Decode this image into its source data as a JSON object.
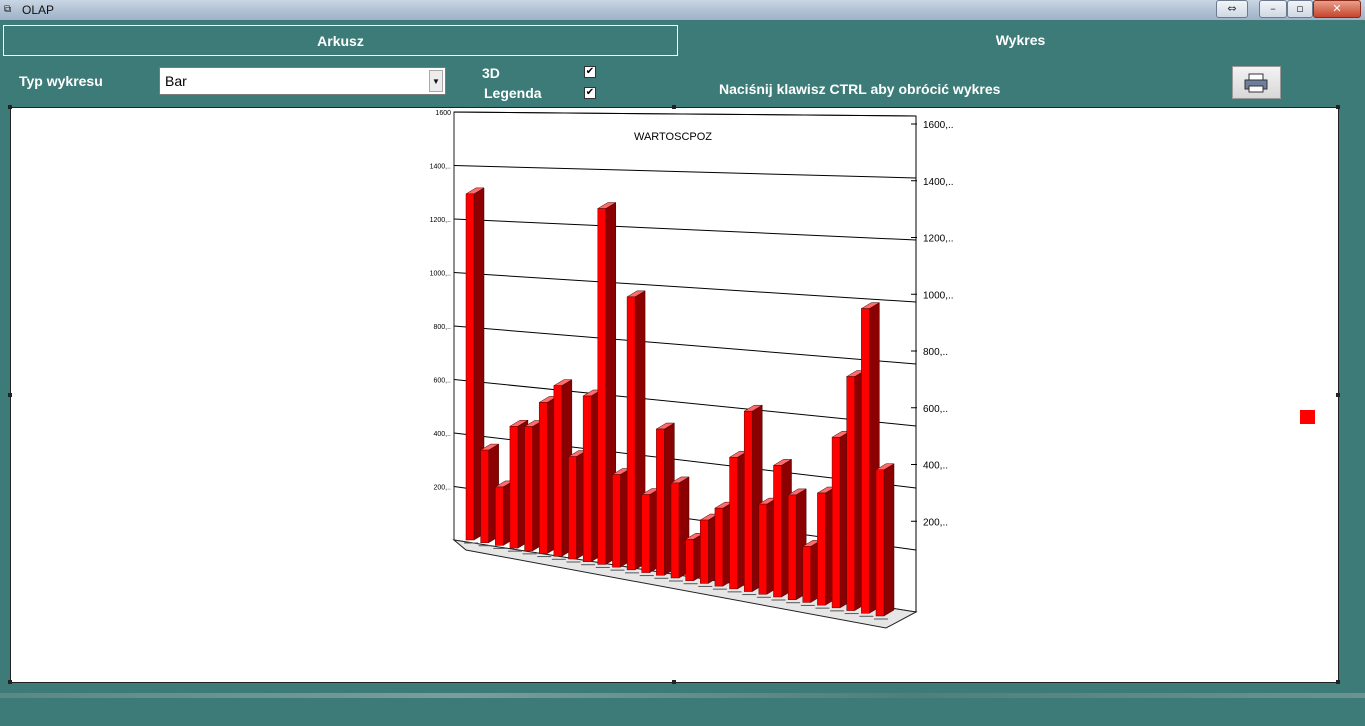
{
  "window": {
    "title": "OLAP"
  },
  "tabs": {
    "sheet": "Arkusz",
    "chart": "Wykres"
  },
  "controls": {
    "chart_type_label": "Typ wykresu",
    "chart_type_value": "Bar",
    "option_3d_label": "3D",
    "option_3d_checked": true,
    "legend_label": "Legenda",
    "legend_checked": true,
    "hint": "Naciśnij klawisz CTRL aby obrócić wykres"
  },
  "icons": {
    "window": "app-icon",
    "print": "printer-icon",
    "minimize": "minimize-icon",
    "maximize": "maximize-icon",
    "close": "close-icon",
    "restore": "restore-arrows-icon",
    "dropdown": "chevron-down-icon"
  },
  "colors": {
    "bar": "#ff0000",
    "panel": "#3d7b78"
  },
  "chart_data": {
    "type": "bar",
    "title": "WARTOSCPOZ",
    "legend": "right",
    "grid": true,
    "three_d": true,
    "ylim": [
      0,
      1600
    ],
    "y_ticks_back": [
      "1600",
      "1400,..",
      "1200,..",
      "1000,..",
      "800,..",
      "600,..",
      "400,..",
      "200,.."
    ],
    "y_ticks_right": [
      "1600,..",
      "1400,..",
      "1200,..",
      "1000,..",
      "800,..",
      "600,..",
      "400,..",
      "200,.."
    ],
    "values": [
      1420,
      380,
      240,
      500,
      510,
      620,
      700,
      420,
      680,
      1460,
      380,
      1120,
      320,
      600,
      390,
      170,
      260,
      320,
      540,
      740,
      370,
      540,
      430,
      230,
      460,
      700,
      960,
      1250,
      600
    ]
  }
}
